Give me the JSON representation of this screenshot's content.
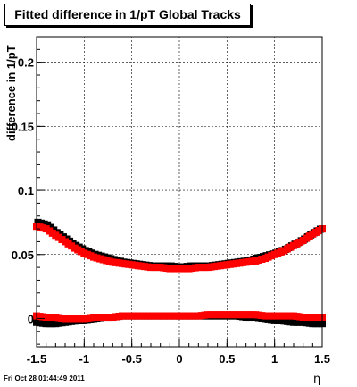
{
  "title": "Fitted difference in 1/pT  Global Tracks",
  "footer": "Fri Oct 28 01:44:49 2011",
  "chart_data": {
    "type": "scatter",
    "title": "Fitted difference in 1/pT  Global Tracks",
    "xlabel": "η",
    "ylabel": "difference in 1/pT",
    "xlim": [
      -1.5,
      1.5
    ],
    "ylim": [
      -0.022,
      0.22
    ],
    "grid": true,
    "x_ticks": [
      "-1.5",
      "-1",
      "-0.5",
      "0",
      "0.5",
      "1",
      "1.5"
    ],
    "y_ticks": [
      "0",
      "0.05",
      "0.1",
      "0.15",
      "0.2"
    ],
    "x_tick_values": [
      -1.5,
      -1,
      -0.5,
      0,
      0.5,
      1,
      1.5
    ],
    "y_tick_values": [
      0,
      0.05,
      0.1,
      0.15,
      0.2
    ],
    "series": [
      {
        "color": "#000000",
        "x": [
          -1.5,
          -1.4,
          -1.3,
          -1.2,
          -1.1,
          -1.0,
          -0.9,
          -0.8,
          -0.7,
          -0.6,
          -0.5,
          -0.4,
          -0.3,
          -0.2,
          -0.1,
          0.0,
          0.1,
          0.2,
          0.3,
          0.4,
          0.5,
          0.6,
          0.7,
          0.8,
          0.9,
          1.0,
          1.1,
          1.2,
          1.3,
          1.4,
          1.5
        ],
        "y": [
          0.074,
          0.072,
          0.066,
          0.061,
          0.056,
          0.052,
          0.049,
          0.047,
          0.045,
          0.043,
          0.042,
          0.041,
          0.04,
          0.04,
          0.04,
          0.039,
          0.04,
          0.04,
          0.04,
          0.041,
          0.042,
          0.043,
          0.044,
          0.046,
          0.048,
          0.05,
          0.053,
          0.057,
          0.061,
          0.066,
          0.07
        ]
      },
      {
        "color": "#ff0000",
        "x": [
          -1.5,
          -1.4,
          -1.3,
          -1.2,
          -1.1,
          -1.0,
          -0.9,
          -0.8,
          -0.7,
          -0.6,
          -0.5,
          -0.4,
          -0.3,
          -0.2,
          -0.1,
          0.0,
          0.1,
          0.2,
          0.3,
          0.4,
          0.5,
          0.6,
          0.7,
          0.8,
          0.9,
          1.0,
          1.1,
          1.2,
          1.3,
          1.4,
          1.5
        ],
        "y": [
          0.072,
          0.07,
          0.065,
          0.06,
          0.055,
          0.051,
          0.048,
          0.046,
          0.044,
          0.043,
          0.042,
          0.041,
          0.04,
          0.04,
          0.039,
          0.039,
          0.039,
          0.04,
          0.04,
          0.041,
          0.042,
          0.043,
          0.044,
          0.045,
          0.047,
          0.05,
          0.053,
          0.057,
          0.061,
          0.066,
          0.07
        ]
      },
      {
        "color": "#000000",
        "x": [
          -1.5,
          -1.4,
          -1.3,
          -1.2,
          -1.1,
          -1.0,
          -0.9,
          -0.8,
          -0.7,
          -0.6,
          -0.5,
          -0.4,
          -0.3,
          -0.2,
          -0.1,
          0.0,
          0.1,
          0.2,
          0.3,
          0.4,
          0.5,
          0.6,
          0.7,
          0.8,
          0.9,
          1.0,
          1.1,
          1.2,
          1.3,
          1.4,
          1.5
        ],
        "y": [
          -0.003,
          -0.004,
          -0.004,
          -0.003,
          -0.002,
          -0.001,
          0.0,
          0.001,
          0.001,
          0.002,
          0.002,
          0.002,
          0.002,
          0.002,
          0.002,
          0.002,
          0.002,
          0.002,
          0.002,
          0.002,
          0.002,
          0.002,
          0.001,
          0.001,
          0.0,
          -0.001,
          -0.002,
          -0.003,
          -0.003,
          -0.004,
          -0.004
        ]
      },
      {
        "color": "#ff0000",
        "x": [
          -1.5,
          -1.4,
          -1.3,
          -1.2,
          -1.1,
          -1.0,
          -0.9,
          -0.8,
          -0.7,
          -0.6,
          -0.5,
          -0.4,
          -0.3,
          -0.2,
          -0.1,
          0.0,
          0.1,
          0.2,
          0.3,
          0.4,
          0.5,
          0.6,
          0.7,
          0.8,
          0.9,
          1.0,
          1.1,
          1.2,
          1.3,
          1.4,
          1.5
        ],
        "y": [
          0.002,
          0.001,
          0.001,
          0.0,
          0.0,
          0.0,
          0.001,
          0.001,
          0.001,
          0.002,
          0.002,
          0.002,
          0.002,
          0.002,
          0.002,
          0.002,
          0.002,
          0.002,
          0.003,
          0.003,
          0.003,
          0.003,
          0.003,
          0.003,
          0.002,
          0.002,
          0.002,
          0.002,
          0.001,
          0.001,
          0.001
        ]
      }
    ]
  }
}
